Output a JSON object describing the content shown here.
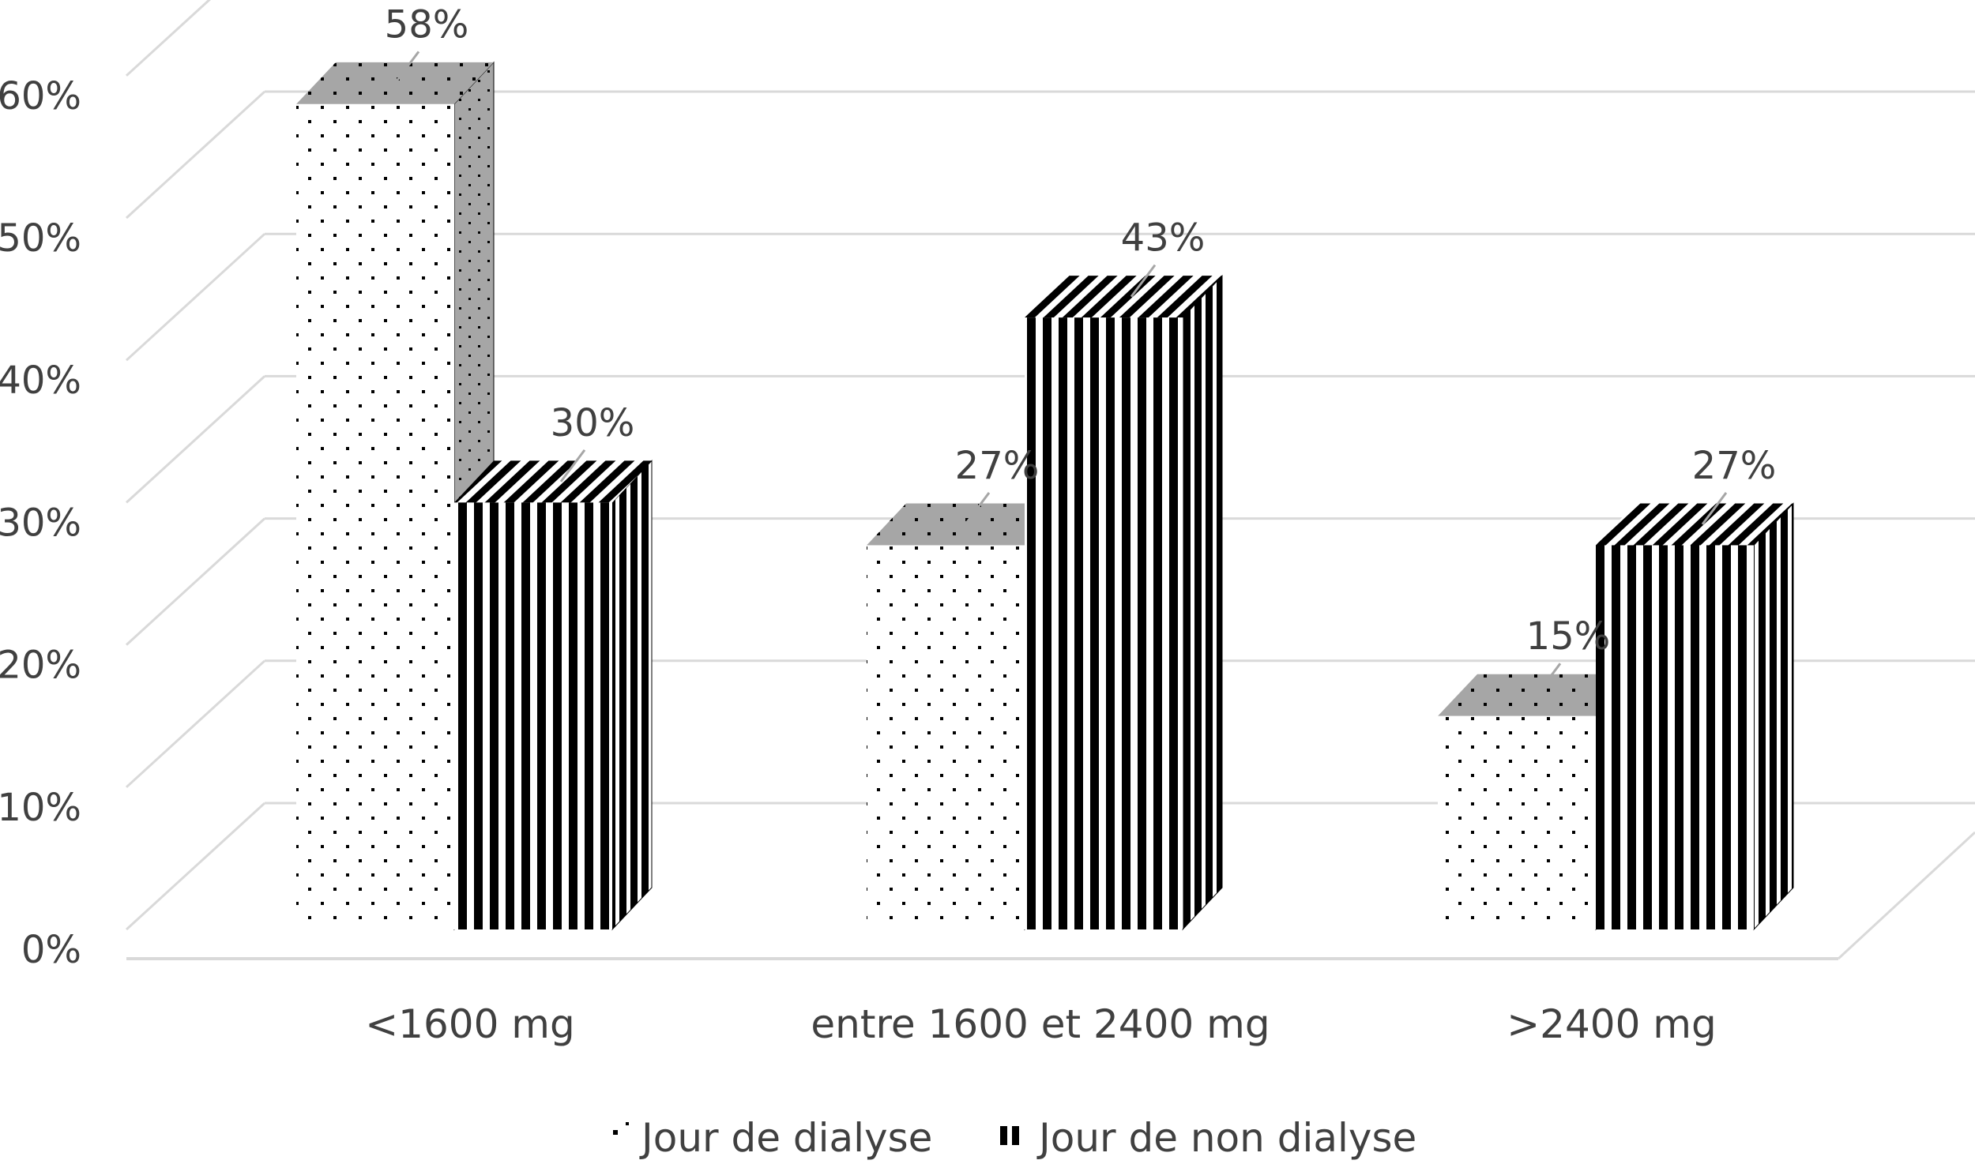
{
  "chart_data": {
    "type": "bar",
    "title": "",
    "xlabel": "",
    "ylabel": "",
    "ylim": [
      0,
      60
    ],
    "y_ticks": [
      "0%",
      "10%",
      "20%",
      "30%",
      "40%",
      "50%",
      "60%"
    ],
    "y_tick_values": [
      0,
      10,
      20,
      30,
      40,
      50,
      60
    ],
    "grid": true,
    "style": "3d-column",
    "legend_position": "bottom",
    "categories": [
      "<1600 mg",
      "entre 1600 et 2400 mg",
      ">2400 mg"
    ],
    "series": [
      {
        "name": "Jour de dialyse",
        "pattern": "dots",
        "values": [
          58,
          27,
          15
        ],
        "labels": [
          "58%",
          "27%",
          "15%"
        ]
      },
      {
        "name": "Jour de non dialyse",
        "pattern": "vertical-stripes",
        "values": [
          30,
          43,
          27
        ],
        "labels": [
          "30%",
          "43%",
          "27%"
        ]
      }
    ],
    "colors": {
      "grid": "#d9d9d9",
      "text": "#404040",
      "top_face": "#a6a6a6",
      "stripe": "#000000",
      "leader": "#a6a6a6"
    }
  }
}
